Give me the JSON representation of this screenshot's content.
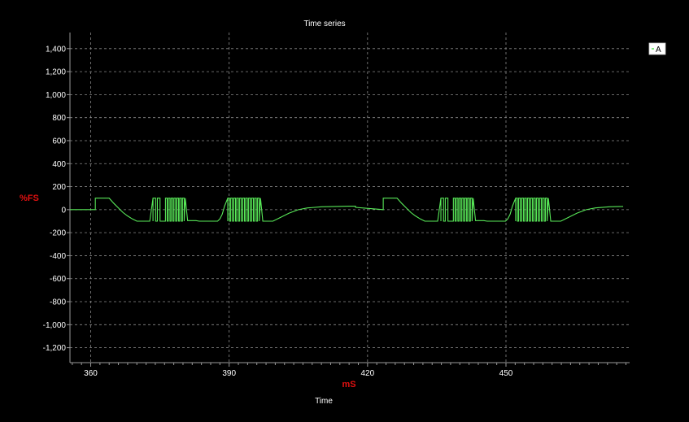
{
  "chart_data": {
    "type": "line",
    "title": "Time series",
    "xlabel": "Time",
    "xunit": "mS",
    "yunit": "%FS",
    "xlim": [
      355.5,
      476.8
    ],
    "ylim": [
      -1330,
      1540
    ],
    "xticks": [
      360,
      390,
      420,
      450
    ],
    "yticks": [
      -1200,
      -1000,
      -800,
      -600,
      -400,
      -200,
      0,
      200,
      400,
      600,
      800,
      1000,
      1200,
      1400
    ],
    "ytick_labels": [
      "-1,200",
      "-1,000",
      "-800",
      "-600",
      "-400",
      "-200",
      "0",
      "200",
      "400",
      "600",
      "800",
      "1,000",
      "1,200",
      "1,400"
    ],
    "grid": true,
    "legend": {
      "position": "top-right",
      "entries": [
        "A"
      ]
    },
    "series": [
      {
        "name": "A",
        "color": "#58e858",
        "pattern_period_ms": 62.4,
        "x": [
          355.5,
          361.0,
          361.0,
          364.0,
          365.0,
          366.0,
          367.0,
          368.0,
          369.0,
          370.0,
          372.8,
          373.5,
          380.5,
          381.0,
          382.8,
          383.5,
          387.5,
          388.0,
          388.5,
          389.0,
          389.7,
          396.8,
          397.3,
          399.5,
          401.0,
          403.0,
          405.0,
          407.0,
          410.0,
          413.0,
          416.0,
          417.4,
          417.4
        ],
        "y": [
          0,
          0,
          100,
          100,
          55,
          15,
          -25,
          -55,
          -80,
          -100,
          -100,
          100,
          100,
          -95,
          -95,
          -100,
          -100,
          -80,
          -40,
          30,
          100,
          100,
          -100,
          -100,
          -70,
          -30,
          0,
          15,
          25,
          28,
          30,
          30,
          20
        ],
        "pulse_trains": [
          {
            "start": 373.5,
            "end": 375.4,
            "count": 2
          },
          {
            "start": 376.2,
            "end": 380.5,
            "count": 7
          },
          {
            "start": 389.7,
            "end": 396.8,
            "count": 11
          }
        ]
      }
    ]
  }
}
